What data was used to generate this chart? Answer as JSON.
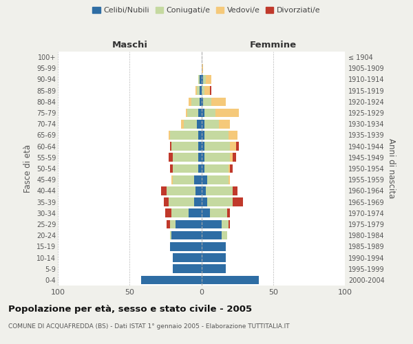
{
  "age_groups": [
    "0-4",
    "5-9",
    "10-14",
    "15-19",
    "20-24",
    "25-29",
    "30-34",
    "35-39",
    "40-44",
    "45-49",
    "50-54",
    "55-59",
    "60-64",
    "65-69",
    "70-74",
    "75-79",
    "80-84",
    "85-89",
    "90-94",
    "95-99",
    "100+"
  ],
  "birth_years": [
    "2000-2004",
    "1995-1999",
    "1990-1994",
    "1985-1989",
    "1980-1984",
    "1975-1979",
    "1970-1974",
    "1965-1969",
    "1960-1964",
    "1955-1959",
    "1950-1954",
    "1945-1949",
    "1940-1944",
    "1935-1939",
    "1930-1934",
    "1925-1929",
    "1920-1924",
    "1915-1919",
    "1910-1914",
    "1905-1909",
    "≤ 1904"
  ],
  "maschi": {
    "celibi": [
      42,
      20,
      20,
      22,
      21,
      18,
      9,
      5,
      4,
      5,
      2,
      2,
      2,
      2,
      3,
      2,
      1,
      1,
      1,
      0,
      0
    ],
    "coniugati": [
      0,
      0,
      0,
      0,
      1,
      4,
      12,
      18,
      20,
      15,
      18,
      18,
      19,
      20,
      9,
      8,
      6,
      2,
      1,
      0,
      0
    ],
    "vedovi": [
      0,
      0,
      0,
      0,
      0,
      0,
      0,
      0,
      0,
      1,
      0,
      0,
      0,
      1,
      2,
      1,
      2,
      1,
      0,
      0,
      0
    ],
    "divorziati": [
      0,
      0,
      0,
      0,
      0,
      2,
      4,
      3,
      4,
      0,
      2,
      3,
      1,
      0,
      0,
      0,
      0,
      0,
      0,
      0,
      0
    ]
  },
  "femmine": {
    "nubili": [
      40,
      17,
      17,
      17,
      14,
      14,
      6,
      4,
      3,
      4,
      2,
      2,
      2,
      2,
      2,
      2,
      1,
      0,
      1,
      0,
      0
    ],
    "coniugate": [
      0,
      0,
      0,
      0,
      4,
      5,
      12,
      18,
      19,
      15,
      17,
      18,
      18,
      17,
      10,
      8,
      6,
      2,
      2,
      0,
      0
    ],
    "vedove": [
      0,
      0,
      0,
      0,
      0,
      0,
      0,
      0,
      0,
      1,
      1,
      2,
      4,
      6,
      8,
      16,
      10,
      4,
      4,
      1,
      0
    ],
    "divorziate": [
      0,
      0,
      0,
      0,
      0,
      1,
      2,
      7,
      3,
      0,
      2,
      2,
      2,
      0,
      0,
      0,
      0,
      1,
      0,
      0,
      0
    ]
  },
  "colors": {
    "celibi_nubili": "#2e6da4",
    "coniugati": "#c5d9a0",
    "vedovi": "#f5c97a",
    "divorziati": "#c0392b"
  },
  "xlim": 100,
  "title": "Popolazione per età, sesso e stato civile - 2005",
  "subtitle": "COMUNE DI ACQUAFREDDA (BS) - Dati ISTAT 1° gennaio 2005 - Elaborazione TUTTITALIA.IT",
  "ylabel_left": "Fasce di età",
  "ylabel_right": "Anni di nascita",
  "xlabel_left": "Maschi",
  "xlabel_right": "Femmine",
  "bg_color": "#f0f0eb",
  "plot_bg": "#ffffff",
  "legend_labels": [
    "Celibi/Nubili",
    "Coniugati/e",
    "Vedovi/e",
    "Divorziati/e"
  ]
}
